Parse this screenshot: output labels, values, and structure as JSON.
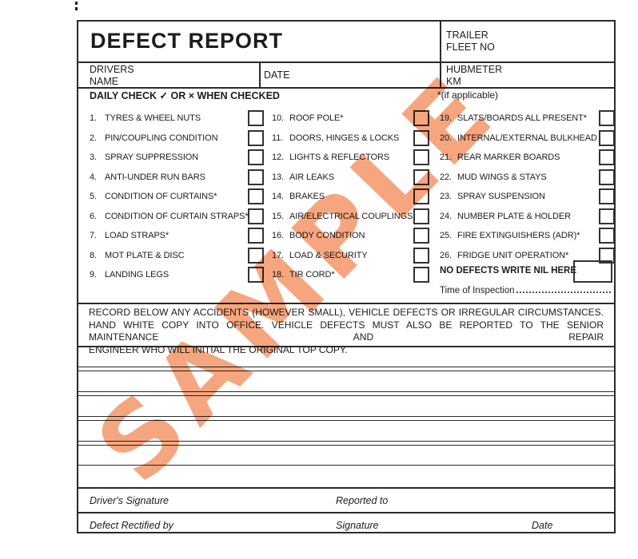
{
  "header": {
    "title": "DEFECT REPORT",
    "trailer_label": "TRAILER\nFLEET NO",
    "drivers_label": "DRIVERS\nNAME",
    "date_label": "DATE",
    "hubmeter_label": "HUBMETER\nKM"
  },
  "checklist": {
    "heading": "DAILY CHECK ✓ OR × WHEN CHECKED",
    "note": "*(if applicable)",
    "columns": [
      {
        "items": [
          {
            "num": "1.",
            "label": "TYRES & WHEEL NUTS"
          },
          {
            "num": "2.",
            "label": "PIN/COUPLING CONDITION"
          },
          {
            "num": "3.",
            "label": "SPRAY SUPPRESSION"
          },
          {
            "num": "4.",
            "label": "ANTI-UNDER RUN BARS"
          },
          {
            "num": "5.",
            "label": "CONDITION OF CURTAINS*"
          },
          {
            "num": "6.",
            "label": "CONDITION OF CURTAIN STRAPS*"
          },
          {
            "num": "7.",
            "label": "LOAD STRAPS*"
          },
          {
            "num": "8.",
            "label": "MOT PLATE & DISC"
          },
          {
            "num": "9.",
            "label": "LANDING LEGS"
          }
        ]
      },
      {
        "items": [
          {
            "num": "10.",
            "label": "ROOF POLE*"
          },
          {
            "num": "11.",
            "label": "DOORS, HINGES & LOCKS"
          },
          {
            "num": "12.",
            "label": "LIGHTS & REFLECTORS"
          },
          {
            "num": "13.",
            "label": "AIR LEAKS"
          },
          {
            "num": "14.",
            "label": "BRAKES"
          },
          {
            "num": "15.",
            "label": "AIR/ELECTRICAL COUPLINGS"
          },
          {
            "num": "16.",
            "label": "BODY CONDITION"
          },
          {
            "num": "17.",
            "label": "LOAD & SECURITY"
          },
          {
            "num": "18.",
            "label": "TIR CORD*"
          }
        ]
      },
      {
        "items": [
          {
            "num": "19.",
            "label": "SLATS/BOARDS ALL PRESENT*"
          },
          {
            "num": "20.",
            "label": "INTERNAL/EXTERNAL BULKHEAD"
          },
          {
            "num": "21.",
            "label": "REAR MARKER BOARDS"
          },
          {
            "num": "22.",
            "label": "MUD WINGS & STAYS"
          },
          {
            "num": "23.",
            "label": "SPRAY SUSPENSION"
          },
          {
            "num": "24.",
            "label": "NUMBER PLATE & HOLDER"
          },
          {
            "num": "25.",
            "label": "FIRE EXTINGUISHERS (ADR)*"
          },
          {
            "num": "26.",
            "label": "FRIDGE UNIT OPERATION*"
          }
        ]
      }
    ],
    "no_defects_label": "NO DEFECTS WRITE NIL HERE",
    "time_of_inspection_label": "Time of Inspection"
  },
  "paragraph": {
    "lines": [
      "RECORD BELOW ANY ACCIDENTS (HOWEVER SMALL), VEHICLE DEFECTS OR IRREGULAR CIRCUMSTANCES.",
      "HAND WHITE COPY INTO OFFICE.  VEHICLE DEFECTS MUST ALSO BE REPORTED TO THE SENIOR MAINTENANCE AND REPAIR",
      "ENGINEER WHO WILL INITIAL THE ORIGINAL TOP COPY."
    ]
  },
  "signature_section": {
    "drivers_signature_label": "Driver's Signature",
    "reported_to_label": "Reported to",
    "defect_rectified_label": "Defect Rectified by",
    "signature_label": "Signature",
    "date_label": "Date"
  },
  "watermark": {
    "text": "SAMPLE",
    "color": "#f6a67e"
  },
  "colors": {
    "ink": "#1d1d1d",
    "border": "#2b2b2b"
  }
}
